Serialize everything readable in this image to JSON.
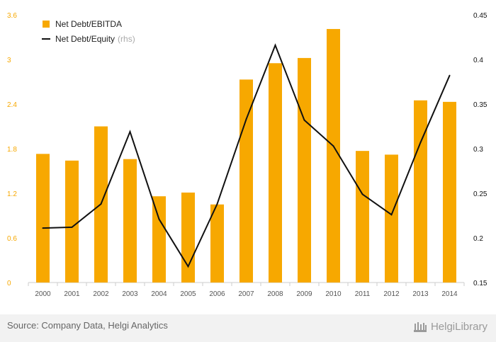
{
  "chart_data": {
    "type": "bar",
    "categories": [
      "2000",
      "2001",
      "2002",
      "2003",
      "2004",
      "2005",
      "2006",
      "2007",
      "2008",
      "2009",
      "2010",
      "2011",
      "2012",
      "2013",
      "2014"
    ],
    "series": [
      {
        "name": "Net Debt/EBITDA",
        "axis": "left",
        "type": "bar",
        "color": "#f7a800",
        "values": [
          1.73,
          1.64,
          2.1,
          1.66,
          1.16,
          1.21,
          1.05,
          2.73,
          2.95,
          3.02,
          3.41,
          1.77,
          1.72,
          2.45,
          2.43
        ]
      },
      {
        "name": "Net Debt/Equity",
        "legend_suffix": "(rhs)",
        "axis": "right",
        "type": "line",
        "color": "#111111",
        "values": [
          0.211,
          0.212,
          0.238,
          0.319,
          0.221,
          0.168,
          0.238,
          0.333,
          0.416,
          0.332,
          0.303,
          0.249,
          0.226,
          0.307,
          0.382
        ]
      }
    ],
    "left_axis": {
      "ylim": [
        0,
        3.6
      ],
      "ticks": [
        "0",
        "0.6",
        "1.2",
        "1.8",
        "2.4",
        "3",
        "3.6"
      ],
      "color": "#f7a800"
    },
    "right_axis": {
      "ylim": [
        0.15,
        0.45
      ],
      "ticks": [
        "0.15",
        "0.2",
        "0.25",
        "0.3",
        "0.35",
        "0.4",
        "0.45"
      ],
      "color": "#111111"
    },
    "legend_position": "top-left",
    "grid": false
  },
  "footer": {
    "source": "Source: Company Data, Helgi Analytics",
    "brand": "HelgiLibrary"
  }
}
